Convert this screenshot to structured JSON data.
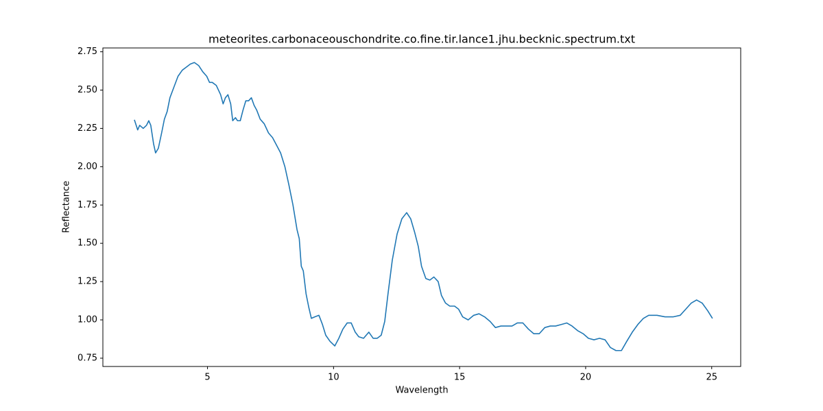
{
  "chart_data": {
    "type": "line",
    "title": "meteorites.carbonaceouschondrite.co.fine.tir.lance1.jhu.becknic.spectrum.txt",
    "x_label": "Wavelength",
    "y_label": "Reflectance",
    "xlim": [
      0.85,
      26.15
    ],
    "ylim": [
      0.696,
      2.775
    ],
    "xticks": [
      5,
      10,
      15,
      20,
      25
    ],
    "yticks": [
      {
        "value": 0.75,
        "label": "0.75"
      },
      {
        "value": 1.0,
        "label": "1.00"
      },
      {
        "value": 1.25,
        "label": "1.25"
      },
      {
        "value": 1.5,
        "label": "1.50"
      },
      {
        "value": 1.75,
        "label": "1.75"
      },
      {
        "value": 2.0,
        "label": "2.00"
      },
      {
        "value": 2.25,
        "label": "2.25"
      },
      {
        "value": 2.5,
        "label": "2.50"
      },
      {
        "value": 2.75,
        "label": "2.75"
      }
    ],
    "grid": false,
    "series": [
      {
        "name": "spectrum",
        "color": "#1f77b4",
        "x": [
          2.1,
          2.23,
          2.31,
          2.45,
          2.58,
          2.67,
          2.75,
          2.86,
          2.94,
          3.05,
          3.18,
          3.29,
          3.4,
          3.51,
          3.67,
          3.83,
          4.0,
          4.16,
          4.32,
          4.48,
          4.65,
          4.81,
          4.97,
          5.08,
          5.19,
          5.35,
          5.52,
          5.62,
          5.71,
          5.81,
          5.92,
          6.0,
          6.11,
          6.19,
          6.3,
          6.41,
          6.52,
          6.63,
          6.74,
          6.85,
          6.95,
          7.09,
          7.25,
          7.42,
          7.58,
          7.74,
          7.9,
          8.07,
          8.23,
          8.39,
          8.55,
          8.64,
          8.72,
          8.8,
          8.91,
          9.02,
          9.12,
          9.26,
          9.42,
          9.56,
          9.69,
          9.86,
          10.05,
          10.21,
          10.37,
          10.54,
          10.7,
          10.86,
          11.0,
          11.19,
          11.4,
          11.57,
          11.73,
          11.89,
          12.03,
          12.16,
          12.33,
          12.52,
          12.71,
          12.9,
          13.06,
          13.22,
          13.36,
          13.49,
          13.66,
          13.82,
          13.98,
          14.15,
          14.28,
          14.44,
          14.61,
          14.8,
          14.96,
          15.12,
          15.34,
          15.56,
          15.77,
          15.99,
          16.21,
          16.42,
          16.64,
          16.86,
          17.08,
          17.29,
          17.51,
          17.73,
          17.94,
          18.16,
          18.38,
          18.6,
          18.81,
          19.03,
          19.25,
          19.46,
          19.68,
          19.9,
          20.11,
          20.33,
          20.55,
          20.77,
          20.98,
          21.2,
          21.42,
          21.63,
          21.85,
          22.07,
          22.29,
          22.5,
          22.83,
          23.15,
          23.48,
          23.75,
          23.97,
          24.19,
          24.4,
          24.62,
          24.84,
          25.03
        ],
        "values": [
          2.306,
          2.24,
          2.27,
          2.25,
          2.27,
          2.3,
          2.27,
          2.15,
          2.09,
          2.12,
          2.22,
          2.31,
          2.36,
          2.45,
          2.52,
          2.59,
          2.63,
          2.65,
          2.67,
          2.68,
          2.66,
          2.62,
          2.59,
          2.55,
          2.55,
          2.53,
          2.47,
          2.41,
          2.45,
          2.47,
          2.41,
          2.3,
          2.32,
          2.3,
          2.3,
          2.37,
          2.43,
          2.43,
          2.45,
          2.4,
          2.37,
          2.31,
          2.28,
          2.22,
          2.19,
          2.14,
          2.09,
          2.0,
          1.88,
          1.75,
          1.59,
          1.53,
          1.35,
          1.32,
          1.17,
          1.08,
          1.01,
          1.02,
          1.03,
          0.97,
          0.9,
          0.86,
          0.83,
          0.88,
          0.94,
          0.98,
          0.98,
          0.92,
          0.89,
          0.88,
          0.92,
          0.88,
          0.88,
          0.9,
          0.99,
          1.17,
          1.39,
          1.56,
          1.66,
          1.7,
          1.66,
          1.57,
          1.48,
          1.35,
          1.27,
          1.26,
          1.28,
          1.25,
          1.16,
          1.11,
          1.09,
          1.09,
          1.07,
          1.02,
          1.0,
          1.03,
          1.04,
          1.02,
          0.99,
          0.95,
          0.96,
          0.96,
          0.96,
          0.98,
          0.98,
          0.94,
          0.91,
          0.91,
          0.95,
          0.96,
          0.96,
          0.97,
          0.98,
          0.96,
          0.93,
          0.91,
          0.88,
          0.87,
          0.88,
          0.87,
          0.82,
          0.8,
          0.8,
          0.86,
          0.92,
          0.97,
          1.01,
          1.03,
          1.03,
          1.02,
          1.02,
          1.03,
          1.07,
          1.11,
          1.13,
          1.11,
          1.06,
          1.01
        ]
      }
    ]
  }
}
